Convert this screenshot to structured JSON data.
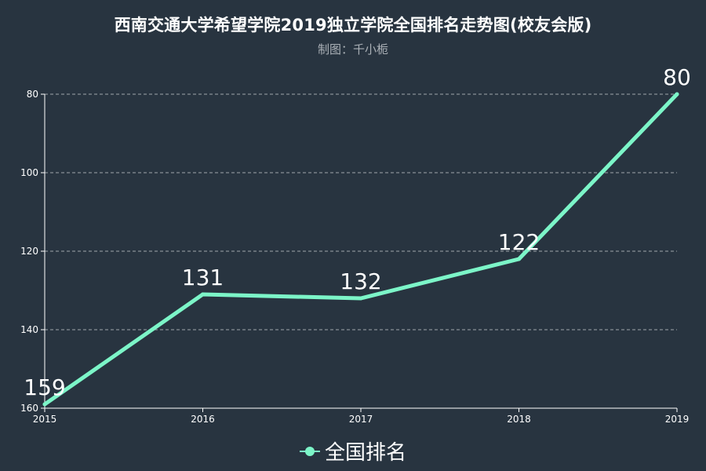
{
  "chart_data": {
    "type": "line",
    "title": "西南交通大学希望学院2019独立学院全国排名走势图(校友会版)",
    "subtitle": "制图：千小栀",
    "x": [
      "2015",
      "2016",
      "2017",
      "2018",
      "2019"
    ],
    "series": [
      {
        "name": "全国排名",
        "values": [
          159,
          131,
          132,
          122,
          80
        ]
      }
    ],
    "y_ticks": [
      80,
      100,
      120,
      140,
      160
    ],
    "ylim": [
      80,
      160
    ],
    "y_inverted": true,
    "grid": true,
    "legend_position": "bottom-center"
  },
  "colors": {
    "background": "#283440",
    "line": "#7cf5c8",
    "text": "#ffffff",
    "axis": "#ffffff",
    "grid": "#a0a6ad"
  }
}
